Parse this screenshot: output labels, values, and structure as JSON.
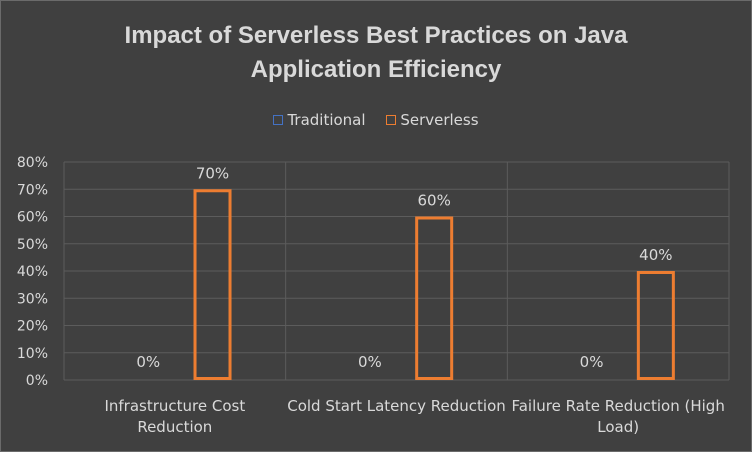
{
  "chart_data": {
    "type": "bar",
    "title_lines": [
      "Impact of Serverless Best Practices  on Java",
      "Application Efficiency"
    ],
    "categories": [
      [
        "Infrastructure Cost",
        "Reduction"
      ],
      [
        "Cold Start Latency Reduction"
      ],
      [
        "Failure Rate Reduction (High",
        "Load)"
      ]
    ],
    "series": [
      {
        "name": "Traditional",
        "values": [
          0,
          0,
          0
        ],
        "labels": [
          "0%",
          "0%",
          "0%"
        ],
        "color": "#4472c4"
      },
      {
        "name": "Serverless",
        "values": [
          70,
          60,
          40
        ],
        "labels": [
          "70%",
          "60%",
          "40%"
        ],
        "color": "#ed7d31"
      }
    ],
    "ylim": [
      0,
      80
    ],
    "yticks": [
      "0%",
      "10%",
      "20%",
      "30%",
      "40%",
      "50%",
      "60%",
      "70%",
      "80%"
    ],
    "legend_position": "top",
    "grid": true
  }
}
